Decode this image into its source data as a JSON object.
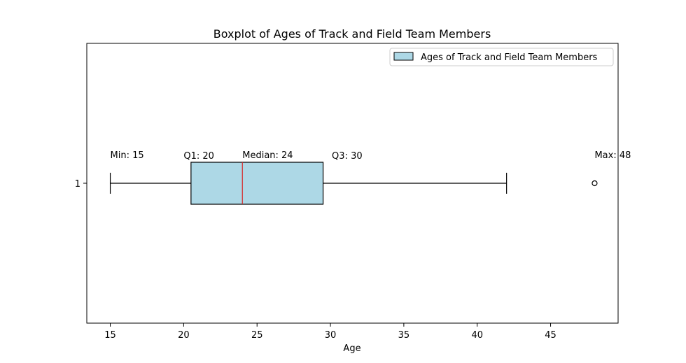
{
  "chart_data": {
    "type": "boxplot",
    "title": "Boxplot of Ages of Track and Field Team Members",
    "xlabel": "Age",
    "ylabel": "",
    "xlim": [
      13.4,
      49.6
    ],
    "xticks": [
      15,
      20,
      25,
      30,
      35,
      40,
      45
    ],
    "yticks": [
      "1"
    ],
    "orientation": "horizontal",
    "grid": false,
    "legend": {
      "position": "top-right",
      "entries": [
        "Ages of Track and Field Team Members"
      ]
    },
    "series": [
      {
        "name": "Ages of Track and Field Team Members",
        "whisker_low": 15,
        "q1": 20.5,
        "median": 24,
        "q3": 29.5,
        "whisker_high": 42,
        "outliers": [
          48
        ]
      }
    ],
    "annotations": [
      {
        "text": "Min: 15",
        "x": 15
      },
      {
        "text": "Q1: 20",
        "x": 20
      },
      {
        "text": "Median: 24",
        "x": 24
      },
      {
        "text": "Q3: 30",
        "x": 30
      },
      {
        "text": "Max: 48",
        "x": 48
      }
    ],
    "colors": {
      "box_fill": "#add8e6",
      "median_line": "#d62728",
      "edge": "#000000"
    }
  }
}
